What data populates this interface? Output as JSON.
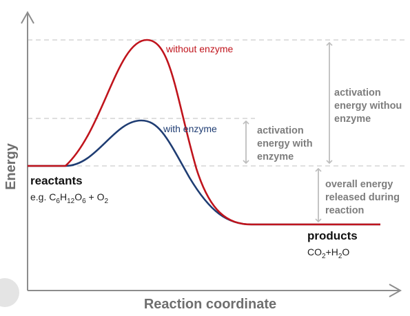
{
  "diagram": {
    "x_axis_label": "Reaction coordinate",
    "y_axis_label": "Energy",
    "curves": {
      "without_enzyme": {
        "label": "without enzyme",
        "color": "#c0141c"
      },
      "with_enzyme": {
        "label": "with enzyme",
        "color": "#1f3d73"
      }
    },
    "annotations": {
      "activation_without": [
        "activation",
        "energy withou",
        "enzyme"
      ],
      "activation_with": [
        "activation",
        "energy with",
        "enzyme"
      ],
      "overall_energy": [
        "overall energy",
        "released during",
        "reaction"
      ]
    },
    "reactants": {
      "title": "reactants",
      "formula_prefix": "e.g. ",
      "formula": [
        {
          "t": "C"
        },
        {
          "t": "6",
          "sub": true
        },
        {
          "t": "H"
        },
        {
          "t": "12",
          "sub": true
        },
        {
          "t": "O"
        },
        {
          "t": "6",
          "sub": true
        },
        {
          "t": " + O"
        },
        {
          "t": "2",
          "sub": true
        }
      ]
    },
    "products": {
      "title": "products",
      "formula": [
        {
          "t": "CO"
        },
        {
          "t": "2",
          "sub": true
        },
        {
          "t": "+H"
        },
        {
          "t": "2",
          "sub": true
        },
        {
          "t": "O"
        }
      ]
    },
    "colors": {
      "axis": "#8c8c8c",
      "guide": "#cccccc",
      "arrow": "#bdbdbd"
    }
  }
}
